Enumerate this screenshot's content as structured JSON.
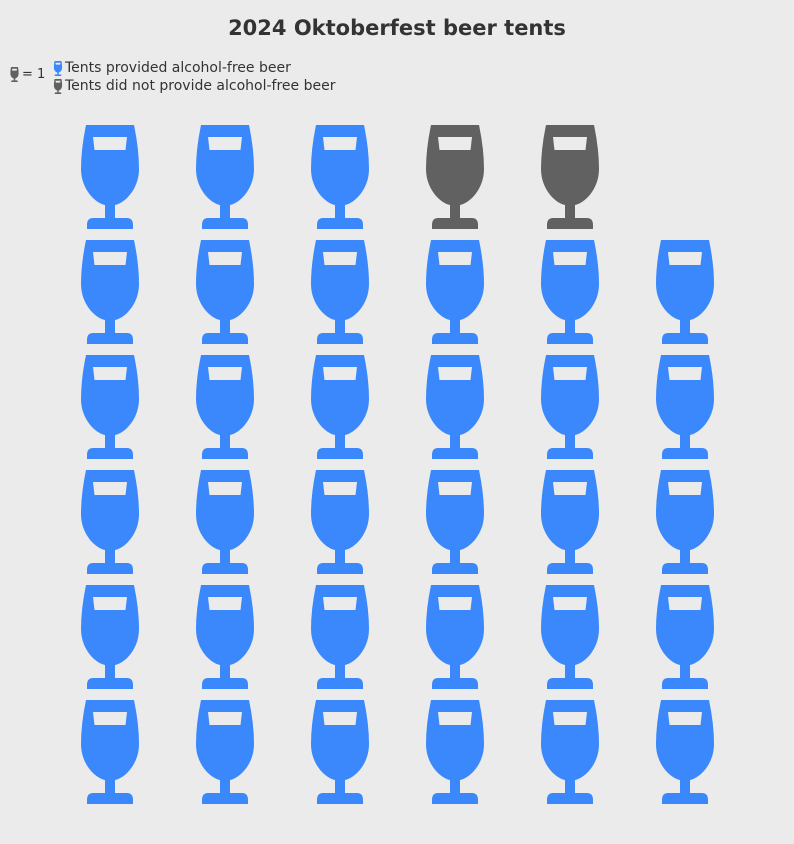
{
  "chart_data": {
    "type": "pictogram",
    "title": "2024 Oktoberfest beer tents",
    "unit_label": "= 1",
    "icon": "wine-glass-icon",
    "series": [
      {
        "name": "Tents provided alcohol-free beer",
        "value": 33,
        "color": "#3a88fb"
      },
      {
        "name": "Tents did not provide alcohol-free beer",
        "value": 2,
        "color": "#616161"
      }
    ],
    "columns": 6,
    "rows": 6,
    "fill_order": "from-bottom-left"
  }
}
